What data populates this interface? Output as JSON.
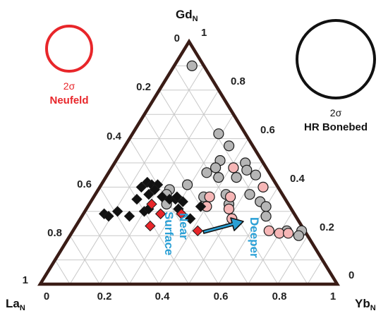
{
  "chart_data": {
    "type": "ternary-scatter",
    "vertices": {
      "top": {
        "base": "Gd",
        "sub": "N"
      },
      "left": {
        "base": "La",
        "sub": "N"
      },
      "right": {
        "base": "Yb",
        "sub": "N"
      }
    },
    "ticks": {
      "bottom": [
        "0",
        "0.2",
        "0.4",
        "0.6",
        "0.8",
        "1"
      ],
      "left": [
        "0",
        "0.2",
        "0.4",
        "0.6",
        "0.8",
        "1"
      ],
      "right": [
        "1",
        "0.8",
        "0.6",
        "0.4",
        "0.2",
        "0"
      ]
    },
    "legend": [
      {
        "sigma": "2σ",
        "name": "Neufeld",
        "color": "#e8262a"
      },
      {
        "sigma": "2σ",
        "name": "HR Bonebed",
        "color": "#111111"
      }
    ],
    "annotations": {
      "near_surface": [
        "Near",
        "Surface"
      ],
      "deeper": "Deeper",
      "arrow_color": "#2aa0d6"
    },
    "colors": {
      "frame": "#3a1c16",
      "grid": "#c8c8c8",
      "grey_circle": "#b5b5b5",
      "pink_circle": "#f6b6b6",
      "black_diamond": "#111111",
      "red_diamond": "#e8262a"
    },
    "series": [
      {
        "marker": "grey-circle",
        "points": [
          {
            "La": 0.04,
            "Gd": 0.9,
            "Yb": 0.06
          },
          {
            "La": 0.09,
            "Gd": 0.62,
            "Yb": 0.29
          },
          {
            "La": 0.08,
            "Gd": 0.57,
            "Yb": 0.35
          },
          {
            "La": 0.06,
            "Gd": 0.5,
            "Yb": 0.44
          },
          {
            "La": 0.07,
            "Gd": 0.47,
            "Yb": 0.46
          },
          {
            "La": 0.05,
            "Gd": 0.45,
            "Yb": 0.5
          },
          {
            "La": 0.14,
            "Gd": 0.51,
            "Yb": 0.35
          },
          {
            "La": 0.17,
            "Gd": 0.48,
            "Yb": 0.35
          },
          {
            "La": 0.21,
            "Gd": 0.46,
            "Yb": 0.33
          },
          {
            "La": 0.12,
            "Gd": 0.44,
            "Yb": 0.44
          },
          {
            "La": 0.18,
            "Gd": 0.44,
            "Yb": 0.38
          },
          {
            "La": 0.3,
            "Gd": 0.41,
            "Yb": 0.29
          },
          {
            "La": 0.37,
            "Gd": 0.39,
            "Yb": 0.24
          },
          {
            "La": 0.39,
            "Gd": 0.37,
            "Yb": 0.24
          },
          {
            "La": 0.27,
            "Gd": 0.36,
            "Yb": 0.37
          },
          {
            "La": 0.19,
            "Gd": 0.37,
            "Yb": 0.44
          },
          {
            "La": 0.11,
            "Gd": 0.37,
            "Yb": 0.52
          },
          {
            "La": 0.09,
            "Gd": 0.34,
            "Yb": 0.57
          },
          {
            "La": 0.41,
            "Gd": 0.33,
            "Yb": 0.26
          },
          {
            "La": 0.2,
            "Gd": 0.33,
            "Yb": 0.47
          },
          {
            "La": 0.08,
            "Gd": 0.32,
            "Yb": 0.6
          },
          {
            "La": 0.1,
            "Gd": 0.28,
            "Yb": 0.62
          },
          {
            "La": 0.01,
            "Gd": 0.22,
            "Yb": 0.77
          },
          {
            "La": 0.06,
            "Gd": 0.22,
            "Yb": 0.72
          },
          {
            "La": 0.03,
            "Gd": 0.2,
            "Yb": 0.77
          }
        ]
      },
      {
        "marker": "pink-circle",
        "points": [
          {
            "La": 0.11,
            "Gd": 0.48,
            "Yb": 0.41
          },
          {
            "La": 0.05,
            "Gd": 0.4,
            "Yb": 0.55
          },
          {
            "La": 0.25,
            "Gd": 0.36,
            "Yb": 0.39
          },
          {
            "La": 0.18,
            "Gd": 0.36,
            "Yb": 0.46
          },
          {
            "La": 0.28,
            "Gd": 0.32,
            "Yb": 0.4
          },
          {
            "La": 0.21,
            "Gd": 0.31,
            "Yb": 0.48
          },
          {
            "La": 0.22,
            "Gd": 0.27,
            "Yb": 0.51
          },
          {
            "La": 0.12,
            "Gd": 0.22,
            "Yb": 0.66
          },
          {
            "La": 0.09,
            "Gd": 0.21,
            "Yb": 0.7
          },
          {
            "La": 0.06,
            "Gd": 0.21,
            "Yb": 0.73
          }
        ]
      },
      {
        "marker": "black-diamond",
        "points": [
          {
            "La": 0.46,
            "Gd": 0.4,
            "Yb": 0.14
          },
          {
            "La": 0.43,
            "Gd": 0.42,
            "Yb": 0.15
          },
          {
            "La": 0.42,
            "Gd": 0.41,
            "Yb": 0.17
          },
          {
            "La": 0.4,
            "Gd": 0.41,
            "Yb": 0.19
          },
          {
            "La": 0.42,
            "Gd": 0.39,
            "Yb": 0.19
          },
          {
            "La": 0.45,
            "Gd": 0.37,
            "Yb": 0.18
          },
          {
            "La": 0.5,
            "Gd": 0.35,
            "Yb": 0.15
          },
          {
            "La": 0.41,
            "Gd": 0.36,
            "Yb": 0.23
          },
          {
            "La": 0.39,
            "Gd": 0.35,
            "Yb": 0.26
          },
          {
            "La": 0.37,
            "Gd": 0.35,
            "Yb": 0.28
          },
          {
            "La": 0.36,
            "Gd": 0.36,
            "Yb": 0.28
          },
          {
            "La": 0.35,
            "Gd": 0.34,
            "Yb": 0.31
          },
          {
            "La": 0.3,
            "Gd": 0.32,
            "Yb": 0.38
          },
          {
            "La": 0.5,
            "Gd": 0.3,
            "Yb": 0.2
          },
          {
            "La": 0.48,
            "Gd": 0.31,
            "Yb": 0.21
          },
          {
            "La": 0.38,
            "Gd": 0.31,
            "Yb": 0.31
          },
          {
            "La": 0.64,
            "Gd": 0.29,
            "Yb": 0.07
          },
          {
            "La": 0.59,
            "Gd": 0.3,
            "Yb": 0.11
          },
          {
            "La": 0.63,
            "Gd": 0.28,
            "Yb": 0.09
          },
          {
            "La": 0.56,
            "Gd": 0.28,
            "Yb": 0.16
          },
          {
            "La": 0.36,
            "Gd": 0.27,
            "Yb": 0.37
          }
        ]
      },
      {
        "marker": "red-diamond",
        "points": [
          {
            "La": 0.46,
            "Gd": 0.33,
            "Yb": 0.21
          },
          {
            "La": 0.45,
            "Gd": 0.29,
            "Yb": 0.26
          },
          {
            "La": 0.38,
            "Gd": 0.29,
            "Yb": 0.33
          },
          {
            "La": 0.51,
            "Gd": 0.24,
            "Yb": 0.25
          },
          {
            "La": 0.36,
            "Gd": 0.22,
            "Yb": 0.42
          }
        ]
      }
    ]
  }
}
